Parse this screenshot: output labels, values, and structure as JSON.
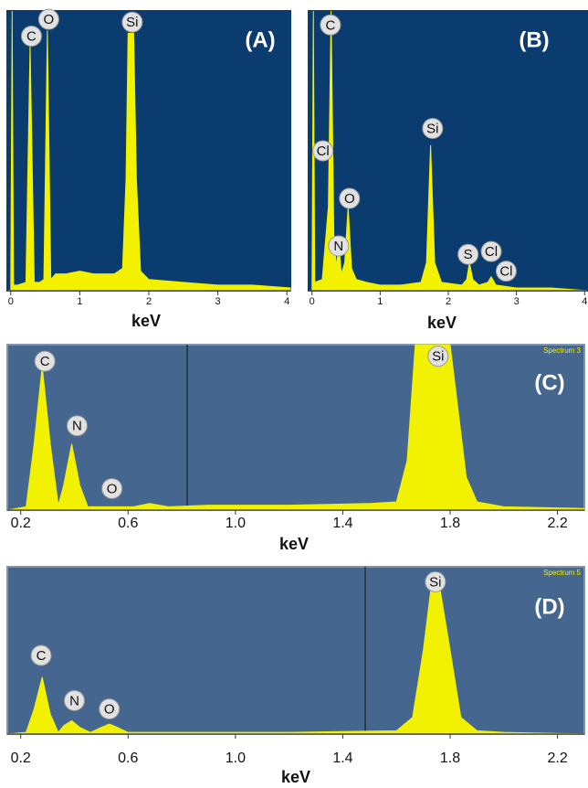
{
  "chart_data": [
    {
      "type": "area",
      "title": "(A)",
      "x_label": "keV",
      "color": "#f2f200",
      "background": "#0b3c6f",
      "xlim": [
        -0.05,
        4.05
      ],
      "ylim": [
        0,
        100
      ],
      "xticks": [
        0,
        1,
        2,
        3,
        4
      ],
      "x": [
        0,
        0.02,
        0.04,
        0.1,
        0.22,
        0.28,
        0.34,
        0.42,
        0.48,
        0.53,
        0.58,
        0.65,
        0.8,
        1.0,
        1.2,
        1.5,
        1.62,
        1.67,
        1.7,
        1.78,
        1.82,
        1.88,
        2.0,
        2.5,
        3.0,
        3.5,
        4.05
      ],
      "values": [
        0,
        100,
        2,
        2,
        3,
        88,
        3,
        3,
        4,
        93,
        4,
        6,
        6,
        7,
        6,
        6,
        8,
        40,
        92,
        92,
        40,
        7,
        4,
        3,
        2,
        2,
        1
      ],
      "annotations": [
        {
          "label": "C",
          "x": 0.3,
          "y": 91
        },
        {
          "label": "O",
          "x": 0.55,
          "y": 97
        },
        {
          "label": "Si",
          "x": 1.76,
          "y": 96
        }
      ]
    },
    {
      "type": "area",
      "title": "(B)",
      "x_label": "keV",
      "color": "#f2f200",
      "background": "#0b3c6f",
      "xlim": [
        -0.05,
        4.05
      ],
      "ylim": [
        0,
        100
      ],
      "xticks": [
        0,
        1,
        2,
        3,
        4
      ],
      "x": [
        0,
        0.02,
        0.04,
        0.15,
        0.24,
        0.28,
        0.32,
        0.36,
        0.39,
        0.43,
        0.48,
        0.53,
        0.58,
        0.65,
        0.8,
        1.0,
        1.3,
        1.6,
        1.68,
        1.74,
        1.8,
        1.9,
        2.2,
        2.27,
        2.31,
        2.36,
        2.45,
        2.58,
        2.63,
        2.7,
        3.0,
        3.5,
        4.05
      ],
      "values": [
        0,
        100,
        3,
        4,
        30,
        100,
        20,
        8,
        18,
        6,
        10,
        30,
        8,
        4,
        3,
        2,
        2,
        3,
        10,
        52,
        10,
        3,
        2,
        4,
        10,
        4,
        2,
        3,
        5,
        2,
        1,
        1,
        0
      ],
      "annotations": [
        {
          "label": "C",
          "x": 0.27,
          "y": 95
        },
        {
          "label": "Cl",
          "x": 0.16,
          "y": 50
        },
        {
          "label": "O",
          "x": 0.55,
          "y": 33
        },
        {
          "label": "N",
          "x": 0.39,
          "y": 16
        },
        {
          "label": "Si",
          "x": 1.77,
          "y": 58
        },
        {
          "label": "S",
          "x": 2.29,
          "y": 13
        },
        {
          "label": "Cl",
          "x": 2.63,
          "y": 14
        },
        {
          "label": "Cl",
          "x": 2.85,
          "y": 7
        }
      ]
    },
    {
      "type": "area",
      "title": "(C)",
      "spectrum_label": "Spectrum 3",
      "x_label": "keV",
      "color": "#f2f200",
      "background": "#44668f",
      "xlim": [
        0.15,
        2.3
      ],
      "ylim": [
        0,
        100
      ],
      "xticks": [
        0.2,
        0.6,
        {
          "value": 1,
          "label": "1.0"
        },
        1.4,
        1.8,
        2.2
      ],
      "x": [
        0.15,
        0.22,
        0.25,
        0.28,
        0.31,
        0.34,
        0.36,
        0.39,
        0.42,
        0.45,
        0.5,
        0.55,
        0.62,
        0.68,
        0.75,
        0.9,
        1.2,
        1.5,
        1.6,
        1.64,
        1.67,
        1.7,
        1.8,
        1.83,
        1.86,
        1.9,
        2.0,
        2.3
      ],
      "values": [
        0,
        2,
        40,
        87,
        40,
        3,
        15,
        40,
        15,
        2,
        2,
        2,
        2,
        4,
        2,
        3,
        3,
        4,
        5,
        30,
        100,
        100,
        100,
        60,
        20,
        5,
        2,
        1
      ],
      "annotations": [
        {
          "label": "C",
          "x": 0.29,
          "y": 90
        },
        {
          "label": "N",
          "x": 0.41,
          "y": 51
        },
        {
          "label": "O",
          "x": 0.54,
          "y": 13
        },
        {
          "label": "Si",
          "x": 1.755,
          "y": 93
        }
      ]
    },
    {
      "type": "area",
      "title": "(D)",
      "spectrum_label": "Spectrum 5",
      "x_label": "keV",
      "color": "#f2f200",
      "background": "#44668f",
      "xlim": [
        0.15,
        2.3
      ],
      "ylim": [
        0,
        100
      ],
      "xticks": [
        0.2,
        0.6,
        {
          "value": 1,
          "label": "1.0"
        },
        1.4,
        1.8,
        2.2
      ],
      "x": [
        0.15,
        0.22,
        0.25,
        0.28,
        0.31,
        0.34,
        0.36,
        0.39,
        0.42,
        0.46,
        0.5,
        0.53,
        0.56,
        0.6,
        0.8,
        1.2,
        1.6,
        1.66,
        1.7,
        1.73,
        1.76,
        1.8,
        1.84,
        1.9,
        2.0,
        2.3
      ],
      "values": [
        0,
        1,
        15,
        34,
        12,
        1,
        5,
        8,
        4,
        1,
        4,
        6,
        4,
        1,
        1,
        1,
        2,
        10,
        50,
        89,
        89,
        50,
        10,
        2,
        1,
        0
      ],
      "annotations": [
        {
          "label": "C",
          "x": 0.276,
          "y": 47
        },
        {
          "label": "N",
          "x": 0.4,
          "y": 20
        },
        {
          "label": "O",
          "x": 0.53,
          "y": 15
        },
        {
          "label": "Si",
          "x": 1.745,
          "y": 91
        }
      ]
    }
  ]
}
